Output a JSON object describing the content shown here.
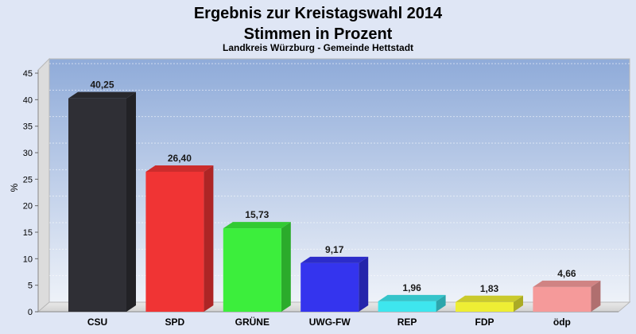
{
  "chart_data": {
    "type": "bar",
    "title_line1": "Ergebnis zur Kreistagswahl 2014",
    "title_line2": "Stimmen in Prozent",
    "subtitle": "Landkreis Würzburg - Gemeinde Hettstadt",
    "ylabel": "%",
    "ylim": [
      0,
      45
    ],
    "yticks": [
      0,
      5,
      10,
      15,
      20,
      25,
      30,
      35,
      40,
      45
    ],
    "grid": true,
    "categories": [
      "CSU",
      "SPD",
      "GRÜNE",
      "UWG-FW",
      "REP",
      "FDP",
      "ödp"
    ],
    "values": [
      40.25,
      26.4,
      15.73,
      9.17,
      1.96,
      1.83,
      4.66
    ],
    "value_labels": [
      "40,25",
      "26,40",
      "15,73",
      "9,17",
      "1,96",
      "1,83",
      "4,66"
    ],
    "colors": [
      "#2f2f35",
      "#f03434",
      "#3cee3c",
      "#3434ee",
      "#3ee6ee",
      "#eeee34",
      "#f59a9a"
    ]
  }
}
